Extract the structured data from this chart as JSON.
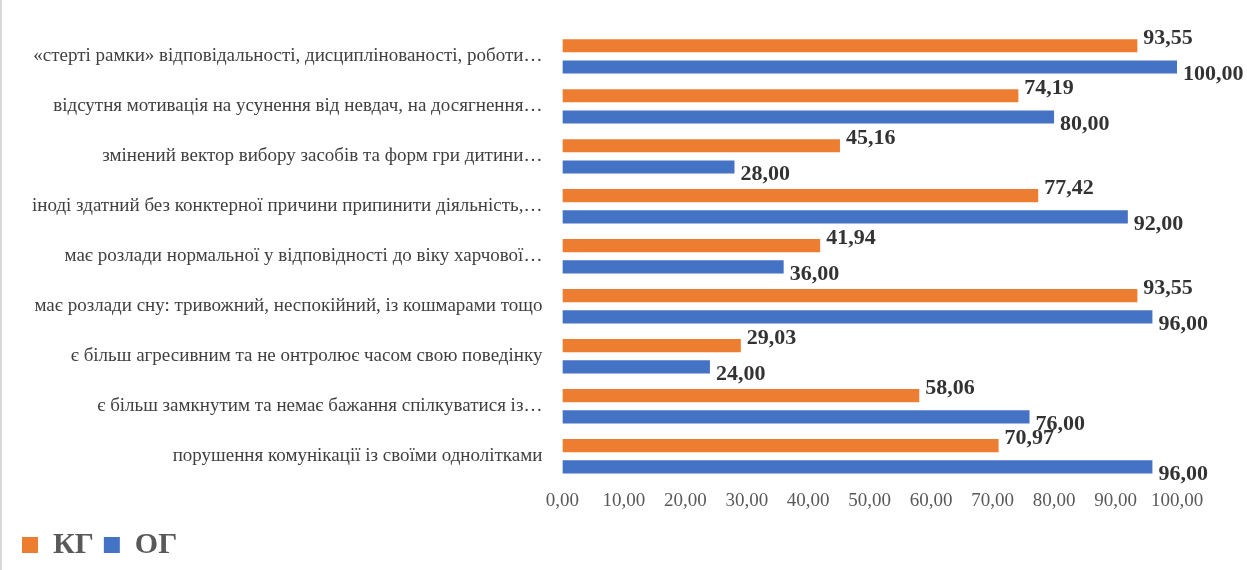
{
  "chart_data": {
    "type": "bar",
    "orientation": "horizontal",
    "categories": [
      "«стерті рамки» відповідальності, дисциплінованості, роботи…",
      "відсутня мотивація на усунення від невдач, на досягнення…",
      "змінений вектор вибору засобів та форм гри дитини…",
      "іноді здатний без конктерної причини припинити діяльність,…",
      "має розлади нормальної у відповідності до віку харчової…",
      "має розлади сну: тривожний, неспокійний, із кошмарами тощо",
      "є більш агресивним та не онтролює часом свою поведінку",
      "є більш замкнутим та немає бажання спілкуватися із…",
      "порушення комунікації із своїми однолітками"
    ],
    "series": [
      {
        "name": "КГ",
        "color": "#ed7d31",
        "values": [
          93.55,
          74.19,
          45.16,
          77.42,
          41.94,
          93.55,
          29.03,
          58.06,
          70.97
        ],
        "value_labels": [
          "93,55",
          "74,19",
          "45,16",
          "77,42",
          "41,94",
          "93,55",
          "29,03",
          "58,06",
          "70,97"
        ]
      },
      {
        "name": "ОГ",
        "color": "#4472c4",
        "values": [
          100,
          80,
          28,
          92,
          36,
          96,
          24,
          76,
          96
        ],
        "value_labels": [
          "100,00",
          "80,00",
          "28,00",
          "92,00",
          "36,00",
          "96,00",
          "24,00",
          "76,00",
          "96,00"
        ]
      }
    ],
    "xlim": [
      0,
      100
    ],
    "xticks": [
      {
        "value": 0,
        "label": "0,00"
      },
      {
        "value": 10,
        "label": "10,00"
      },
      {
        "value": 20,
        "label": "20,00"
      },
      {
        "value": 30,
        "label": "30,00"
      },
      {
        "value": 40,
        "label": "40,00"
      },
      {
        "value": 50,
        "label": "50,00"
      },
      {
        "value": 60,
        "label": "60,00"
      },
      {
        "value": 70,
        "label": "70,00"
      },
      {
        "value": 80,
        "label": "80,00"
      },
      {
        "value": 90,
        "label": "90,00"
      },
      {
        "value": 100,
        "label": "100,00"
      }
    ],
    "grid": false,
    "legend": "bottom left"
  }
}
